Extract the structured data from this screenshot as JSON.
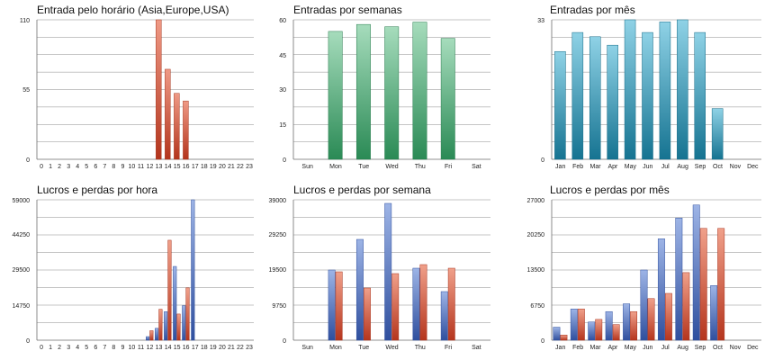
{
  "chart_data": [
    {
      "type": "bar",
      "title": "Entrada pelo horário (Asia,Europe,USA)",
      "categories": [
        "0",
        "1",
        "2",
        "3",
        "4",
        "5",
        "6",
        "7",
        "8",
        "9",
        "10",
        "11",
        "12",
        "13",
        "14",
        "15",
        "16",
        "17",
        "18",
        "19",
        "20",
        "21",
        "22",
        "23"
      ],
      "series": [
        {
          "values": [
            0,
            0,
            0,
            0,
            0,
            0,
            0,
            0,
            0,
            0,
            0,
            0,
            0,
            110,
            71,
            52,
            46,
            0,
            0,
            0,
            0,
            0,
            0,
            0
          ]
        }
      ],
      "yticks": [
        "0",
        "55",
        "110"
      ],
      "ylim": [
        0,
        110
      ],
      "grid": true,
      "legend": "none",
      "colors": [
        "#c9432a"
      ]
    },
    {
      "type": "bar",
      "title": "Entradas por semanas",
      "categories": [
        "Sun",
        "Mon",
        "Tue",
        "Wed",
        "Thu",
        "Fri",
        "Sat"
      ],
      "series": [
        {
          "values": [
            0,
            55,
            58,
            57,
            59,
            52,
            0
          ]
        }
      ],
      "yticks": [
        "0",
        "15",
        "30",
        "45",
        "60"
      ],
      "ylim": [
        0,
        60
      ],
      "grid": true,
      "legend": "none",
      "colors": [
        "#2e9a5e"
      ]
    },
    {
      "type": "bar",
      "title": "Entradas por mês",
      "categories": [
        "Jan",
        "Feb",
        "Mar",
        "Apr",
        "May",
        "Jun",
        "Jul",
        "Aug",
        "Sep",
        "Oct",
        "Nov",
        "Dec"
      ],
      "series": [
        {
          "values": [
            25.5,
            30,
            29,
            27,
            33,
            30,
            32.5,
            33,
            30,
            12,
            0,
            0
          ]
        }
      ],
      "yticks": [
        "0",
        "33"
      ],
      "ylim": [
        0,
        33
      ],
      "grid": true,
      "legend": "none",
      "colors": [
        "#1b86a8"
      ]
    },
    {
      "type": "bar",
      "title": "Lucros e perdas por hora",
      "categories": [
        "0",
        "1",
        "2",
        "3",
        "4",
        "5",
        "6",
        "7",
        "8",
        "9",
        "10",
        "11",
        "12",
        "13",
        "14",
        "15",
        "16",
        "17",
        "18",
        "19",
        "20",
        "21",
        "22",
        "23"
      ],
      "series": [
        {
          "values": [
            0,
            0,
            0,
            0,
            0,
            0,
            0,
            0,
            0,
            0,
            0,
            0,
            1500,
            5000,
            12000,
            31000,
            14500,
            59000,
            0,
            0,
            0,
            0,
            0,
            0
          ]
        },
        {
          "values": [
            0,
            0,
            0,
            0,
            0,
            0,
            0,
            0,
            0,
            0,
            0,
            0,
            4000,
            13000,
            42000,
            11000,
            22000,
            0,
            0,
            0,
            0,
            0,
            0,
            0
          ]
        }
      ],
      "yticks": [
        "0",
        "14750",
        "29500",
        "44250",
        "59000"
      ],
      "ylim": [
        0,
        59000
      ],
      "grid": true,
      "legend": "none",
      "colors": [
        "#4a6fbf",
        "#d9533a"
      ]
    },
    {
      "type": "bar",
      "title": "Lucros e perdas por semana",
      "categories": [
        "Sun",
        "Mon",
        "Tue",
        "Wed",
        "Thu",
        "Fri",
        "Sat"
      ],
      "series": [
        {
          "values": [
            0,
            19500,
            28000,
            38000,
            20000,
            13500,
            0
          ]
        },
        {
          "values": [
            0,
            19000,
            14500,
            18500,
            21000,
            20000,
            0
          ]
        }
      ],
      "yticks": [
        "0",
        "9750",
        "19500",
        "29250",
        "39000"
      ],
      "ylim": [
        0,
        39000
      ],
      "grid": true,
      "legend": "none",
      "colors": [
        "#4a6fbf",
        "#d9533a"
      ]
    },
    {
      "type": "bar",
      "title": "Lucros e perdas por mês",
      "categories": [
        "Jan",
        "Feb",
        "Mar",
        "Apr",
        "May",
        "Jun",
        "Jul",
        "Aug",
        "Sep",
        "Oct",
        "Nov",
        "Dec"
      ],
      "series": [
        {
          "values": [
            2500,
            6000,
            3500,
            5500,
            7000,
            13500,
            19500,
            23500,
            26000,
            10500,
            0,
            0
          ]
        },
        {
          "values": [
            1000,
            6000,
            4000,
            3000,
            5500,
            8000,
            9000,
            13000,
            21500,
            21500,
            0,
            0
          ]
        }
      ],
      "yticks": [
        "0",
        "6750",
        "13500",
        "20250",
        "27000"
      ],
      "ylim": [
        0,
        27000
      ],
      "grid": true,
      "legend": "none",
      "colors": [
        "#4a6fbf",
        "#d9533a"
      ]
    }
  ]
}
